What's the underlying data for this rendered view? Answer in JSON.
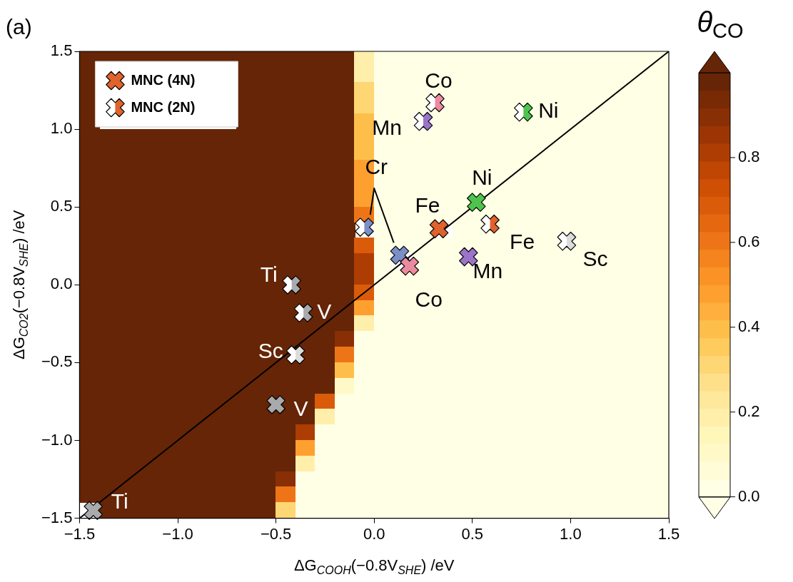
{
  "chart_data": [
    {
      "type": "heatmap",
      "clabel": "θ$_{CO}$",
      "clim": [
        0,
        1
      ],
      "cticks": [
        {
          "value": 0,
          "label": "0.0"
        },
        {
          "value": 0.2,
          "label": "0.2"
        },
        {
          "value": 0.4,
          "label": "0.4"
        },
        {
          "value": 0.6,
          "label": "0.6"
        },
        {
          "value": 0.8,
          "label": "0.8"
        }
      ],
      "tick_labels": false,
      "categories": [
        null,
        null,
        null,
        null,
        null,
        null,
        null,
        null,
        null,
        null,
        null,
        null,
        null,
        null,
        null,
        null,
        null,
        null,
        null,
        null,
        null,
        null,
        null,
        null,
        null,
        null,
        null,
        null,
        null,
        null
      ],
      "y_categories": [
        null,
        null,
        null,
        null,
        null,
        null,
        null,
        null,
        null,
        null,
        null,
        null,
        null,
        null,
        null,
        null,
        null,
        null,
        null,
        null,
        null,
        null,
        null,
        null,
        null,
        null,
        null,
        null,
        null,
        null
      ],
      "cells": [
        [
          1,
          1,
          1,
          1,
          1,
          1,
          1,
          1,
          1,
          1,
          1,
          1,
          1,
          1,
          0.2,
          0,
          0,
          0,
          0,
          0,
          0,
          0,
          0,
          0,
          0,
          0,
          0,
          0,
          0,
          0
        ],
        [
          1,
          null,
          null,
          null,
          null,
          null,
          null,
          null,
          1,
          1,
          1,
          1,
          1,
          1,
          0.2,
          0,
          0,
          0,
          0,
          0,
          0,
          0,
          0,
          0,
          0,
          0,
          0,
          0,
          0,
          0
        ],
        [
          1,
          null,
          null,
          null,
          null,
          null,
          null,
          null,
          1,
          1,
          1,
          1,
          1,
          1,
          0.3,
          0,
          0,
          0,
          0,
          0,
          0,
          0,
          0,
          0,
          0,
          0,
          0,
          0,
          0,
          0
        ],
        [
          1,
          null,
          null,
          null,
          null,
          null,
          null,
          null,
          1,
          1,
          1,
          1,
          1,
          1,
          0.3,
          0,
          0,
          0,
          0,
          0,
          0,
          0,
          0,
          0,
          0,
          0,
          0,
          0,
          0,
          0
        ],
        [
          1,
          null,
          null,
          null,
          null,
          null,
          null,
          null,
          1,
          1,
          1,
          1,
          1,
          1,
          0.4,
          0,
          0,
          null,
          0,
          0,
          0,
          0,
          0,
          0,
          0,
          0,
          0,
          0,
          0,
          0
        ],
        [
          1,
          1,
          1,
          1,
          1,
          1,
          1,
          1,
          1,
          1,
          1,
          1,
          1,
          1,
          0.4,
          0,
          0,
          0,
          0,
          0,
          0,
          0,
          0,
          0,
          0,
          0,
          0,
          0,
          0,
          0
        ],
        [
          1,
          1,
          1,
          1,
          1,
          1,
          1,
          1,
          1,
          1,
          1,
          1,
          1,
          1,
          0.4,
          0,
          0,
          0,
          0,
          0,
          0,
          0,
          0,
          0,
          0,
          0,
          0,
          0,
          0,
          0
        ],
        [
          1,
          1,
          1,
          1,
          1,
          1,
          1,
          1,
          1,
          1,
          1,
          1,
          1,
          1,
          0.5,
          0,
          0,
          0,
          0,
          0,
          0,
          0,
          0,
          0,
          0,
          0,
          0,
          0,
          0,
          0
        ],
        [
          1,
          1,
          1,
          1,
          1,
          1,
          1,
          1,
          1,
          1,
          1,
          1,
          1,
          1,
          0.5,
          0,
          0,
          0,
          0,
          0,
          0,
          0,
          0,
          0,
          0,
          0,
          0,
          0,
          0,
          0
        ],
        [
          1,
          1,
          1,
          1,
          1,
          1,
          1,
          1,
          1,
          1,
          1,
          1,
          1,
          1,
          0.5,
          0,
          0,
          0,
          0,
          0,
          0,
          0,
          0,
          0,
          0,
          0,
          0,
          0,
          0,
          0
        ],
        [
          1,
          1,
          1,
          1,
          1,
          1,
          1,
          1,
          1,
          1,
          1,
          1,
          1,
          1,
          0.6,
          0,
          0,
          0,
          0,
          0,
          0,
          0,
          0,
          0,
          0,
          0,
          0,
          0,
          0,
          0
        ],
        [
          1,
          1,
          1,
          1,
          1,
          1,
          1,
          1,
          1,
          1,
          1,
          1,
          1,
          1,
          null,
          0,
          0,
          0,
          null,
          0,
          0,
          0,
          0,
          0,
          0,
          0,
          0,
          0,
          0,
          0
        ],
        [
          1,
          1,
          1,
          1,
          1,
          1,
          1,
          1,
          1,
          1,
          1,
          1,
          1,
          1,
          0.7,
          0,
          0,
          0,
          0,
          0,
          0,
          0,
          0,
          0,
          0,
          0,
          0,
          0,
          0,
          0
        ],
        [
          1,
          1,
          1,
          1,
          1,
          1,
          1,
          1,
          1,
          1,
          1,
          1,
          1,
          1,
          0.8,
          0,
          null,
          0,
          0,
          0,
          0,
          0,
          0,
          0,
          0,
          0,
          0,
          0,
          0,
          0
        ],
        [
          1,
          1,
          1,
          1,
          1,
          1,
          1,
          1,
          1,
          1,
          1,
          1,
          1,
          1,
          0.8,
          0,
          0,
          0,
          0,
          0,
          0,
          0,
          0,
          0,
          0,
          0,
          0,
          0,
          0,
          0
        ],
        [
          1,
          1,
          1,
          1,
          1,
          1,
          1,
          1,
          1,
          1,
          1,
          1,
          1,
          1,
          0.7,
          0,
          0,
          0,
          0,
          0,
          0,
          0,
          0,
          0,
          0,
          0,
          0,
          0,
          0,
          0
        ],
        [
          1,
          1,
          1,
          1,
          1,
          1,
          1,
          1,
          1,
          1,
          1,
          1,
          1,
          1,
          0.5,
          0,
          0,
          0,
          0,
          0,
          0,
          0,
          0,
          0,
          0,
          0,
          0,
          0,
          0,
          0
        ],
        [
          1,
          1,
          1,
          1,
          1,
          1,
          1,
          1,
          1,
          1,
          1,
          1,
          1,
          1,
          0.2,
          0,
          0,
          0,
          0,
          0,
          0,
          0,
          0,
          0,
          0,
          0,
          0,
          0,
          0,
          0
        ],
        [
          1,
          1,
          1,
          1,
          1,
          1,
          1,
          1,
          1,
          1,
          1,
          1,
          1,
          0.9,
          0,
          0,
          0,
          0,
          0,
          0,
          0,
          0,
          0,
          0,
          0,
          0,
          0,
          0,
          0,
          0
        ],
        [
          1,
          1,
          1,
          1,
          1,
          1,
          1,
          1,
          1,
          1,
          1,
          1,
          1,
          0.6,
          0,
          0,
          0,
          0,
          0,
          0,
          0,
          0,
          0,
          0,
          0,
          0,
          0,
          0,
          0,
          0
        ],
        [
          1,
          1,
          1,
          1,
          1,
          1,
          1,
          1,
          1,
          1,
          1,
          1,
          1,
          0.4,
          0,
          0,
          0,
          0,
          0,
          0,
          0,
          0,
          0,
          0,
          0,
          0,
          0,
          0,
          0,
          0
        ],
        [
          1,
          1,
          1,
          1,
          1,
          1,
          1,
          1,
          1,
          1,
          1,
          1,
          1,
          0.1,
          0,
          0,
          0,
          0,
          0,
          0,
          0,
          0,
          0,
          0,
          0,
          0,
          0,
          0,
          0,
          0
        ],
        [
          1,
          1,
          1,
          1,
          1,
          1,
          1,
          1,
          1,
          1,
          1,
          1,
          0.7,
          0,
          0,
          0,
          0,
          0,
          0,
          0,
          0,
          0,
          0,
          0,
          0,
          0,
          0,
          0,
          0,
          0
        ],
        [
          1,
          1,
          1,
          1,
          1,
          1,
          1,
          1,
          1,
          1,
          1,
          1,
          0.2,
          0,
          0,
          0,
          0,
          0,
          0,
          0,
          0,
          0,
          0,
          0,
          0,
          0,
          0,
          0,
          0,
          0
        ],
        [
          1,
          1,
          1,
          1,
          1,
          1,
          1,
          1,
          1,
          1,
          1,
          0.8,
          0,
          0,
          0,
          0,
          0,
          0,
          0,
          0,
          0,
          0,
          0,
          0,
          0,
          0,
          0,
          0,
          0,
          0
        ],
        [
          1,
          1,
          1,
          1,
          1,
          1,
          1,
          1,
          1,
          1,
          1,
          0.5,
          0,
          0,
          0,
          0,
          0,
          0,
          0,
          0,
          0,
          0,
          0,
          0,
          0,
          0,
          0,
          0,
          0,
          0
        ],
        [
          1,
          1,
          1,
          1,
          1,
          1,
          1,
          1,
          1,
          1,
          1,
          0.2,
          0,
          0,
          0,
          0,
          0,
          0,
          0,
          0,
          0,
          0,
          0,
          0,
          0,
          0,
          0,
          0,
          0,
          0
        ],
        [
          1,
          1,
          1,
          1,
          1,
          1,
          1,
          1,
          1,
          1,
          0.9,
          0,
          0,
          0,
          0,
          0,
          0,
          0,
          0,
          0,
          0,
          0,
          0,
          0,
          0,
          0,
          0,
          0,
          0,
          0
        ],
        [
          1,
          1,
          1,
          1,
          1,
          1,
          1,
          1,
          1,
          1,
          0.6,
          0,
          0,
          0,
          0,
          0,
          0,
          0,
          0,
          0,
          0,
          0,
          0,
          0,
          0,
          0,
          0,
          0,
          0,
          0
        ],
        [
          null,
          1,
          1,
          1,
          1,
          1,
          1,
          1,
          1,
          1,
          0.3,
          0,
          0,
          0,
          0,
          0,
          0,
          0,
          0,
          0,
          0,
          0,
          0,
          0,
          0,
          0,
          0,
          0,
          0,
          0
        ]
      ]
    },
    {
      "type": "scatter",
      "title": "(a)",
      "xlabel": "ΔG$_{COOH}$(−0.8V$_{SHE}$) /eV",
      "ylabel": "ΔG$_{CO2}$(−0.8V$_{SHE}$) /eV",
      "xlim": [
        -1.5,
        1.5
      ],
      "ylim": [
        -1.5,
        1.5
      ],
      "xticks": [
        {
          "value": -1.5,
          "label": "−1.5"
        },
        {
          "value": -1,
          "label": "−1.0"
        },
        {
          "value": -0.5,
          "label": "−0.5"
        },
        {
          "value": 0,
          "label": "0.0"
        },
        {
          "value": 0.5,
          "label": "0.5"
        },
        {
          "value": 1,
          "label": "1.0"
        },
        {
          "value": 1.5,
          "label": "1.5"
        }
      ],
      "yticks": [
        {
          "value": -1.5,
          "label": "−1.5"
        },
        {
          "value": -1,
          "label": "−1.0"
        },
        {
          "value": -0.5,
          "label": "−0.5"
        },
        {
          "value": 0,
          "label": "0.0"
        },
        {
          "value": 0.5,
          "label": "0.5"
        },
        {
          "value": 1,
          "label": "1.0"
        },
        {
          "value": 1.5,
          "label": "1.5"
        }
      ],
      "grid": false,
      "legend": "top left",
      "marker": "cross",
      "series": [
        {
          "type": "line",
          "marker": "none",
          "color": "#000000",
          "x": [
            -1.5,
            1.5
          ],
          "values": [
            -1.5,
            1.5
          ]
        },
        {
          "type": "line",
          "marker": "none",
          "color": "#000000",
          "x": [
            -0.02,
            0.0,
            0.1
          ],
          "values": [
            0.45,
            0.62,
            0.27
          ]
        },
        {
          "name": "MNC (4N)",
          "color": "#e0622c",
          "x": [
            -1.43,
            -0.5,
            0.13,
            0.18,
            0.33,
            0.52,
            0.48
          ],
          "values": [
            -1.45,
            -0.77,
            0.19,
            0.12,
            0.36,
            0.53,
            0.18
          ],
          "colors": [
            "#a8aaad",
            "#a8aaad",
            "#7b8fc7",
            "#ec8aa0",
            "#e0622c",
            "#4dc44d",
            "#9b74c9"
          ]
        },
        {
          "name": "MNC (2N)",
          "color": "#e0622c",
          "x": [
            -0.42,
            -0.36,
            -0.4,
            -0.05,
            0.25,
            0.31,
            0.76,
            0.59,
            0.98
          ],
          "values": [
            0.0,
            -0.18,
            -0.45,
            0.37,
            1.05,
            1.17,
            1.11,
            0.39,
            0.28
          ],
          "colors": [
            "#a8aaad",
            "#a8aaad",
            "#dcdcdc",
            "#7b8fc7",
            "#9b74c9",
            "#ec8aa0",
            "#4dc44d",
            "#e0622c",
            "#dcdcdc"
          ]
        }
      ],
      "annotations": [
        {
          "text": "Ti",
          "x": -1.43,
          "y": -1.45
        },
        {
          "text": "V",
          "x": -0.5,
          "y": -0.77
        },
        {
          "text": "Sc",
          "x": -0.4,
          "y": -0.45
        },
        {
          "text": "V",
          "x": -0.36,
          "y": -0.18
        },
        {
          "text": "Ti",
          "x": -0.42,
          "y": 0.0
        },
        {
          "text": "Cr",
          "x": 0.0,
          "y": 0.62
        },
        {
          "text": "Co",
          "x": 0.18,
          "y": 0.12
        },
        {
          "text": "Fe",
          "x": 0.33,
          "y": 0.36
        },
        {
          "text": "Ni",
          "x": 0.52,
          "y": 0.53
        },
        {
          "text": "Mn",
          "x": 0.48,
          "y": 0.18
        },
        {
          "text": "Fe",
          "x": 0.59,
          "y": 0.39
        },
        {
          "text": "Sc",
          "x": 0.98,
          "y": 0.28
        },
        {
          "text": "Ni",
          "x": 0.76,
          "y": 1.11
        },
        {
          "text": "Co",
          "x": 0.31,
          "y": 1.17
        },
        {
          "text": "Mn",
          "x": 0.25,
          "y": 1.05
        }
      ]
    }
  ]
}
